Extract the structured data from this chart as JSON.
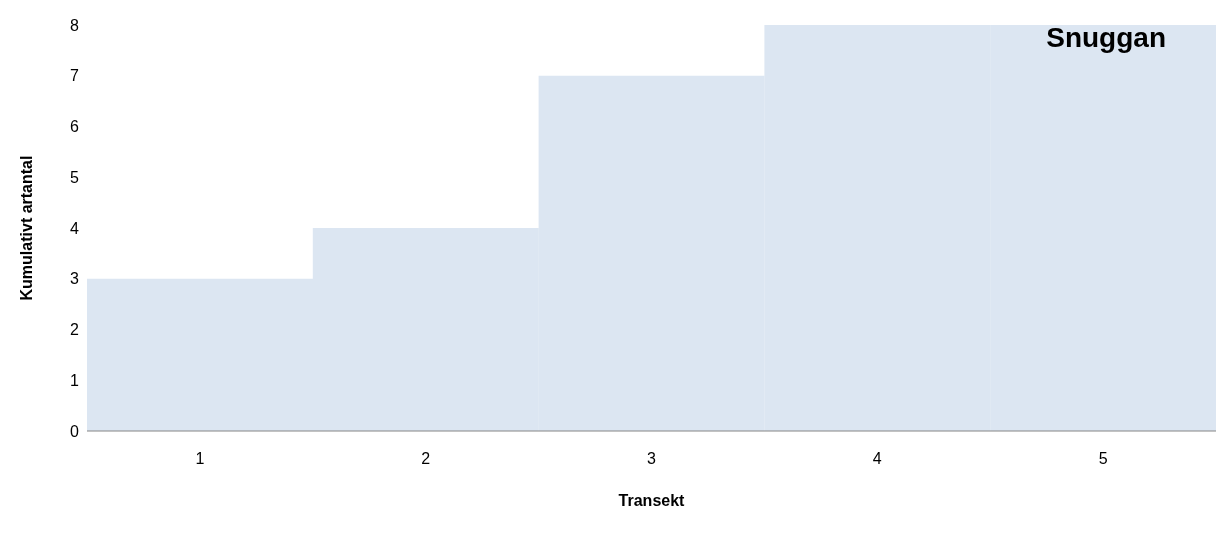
{
  "chart_data": {
    "type": "bar",
    "title": "Snuggan",
    "xlabel": "Transekt",
    "ylabel": "Kumulativt artantal",
    "categories": [
      "1",
      "2",
      "3",
      "4",
      "5"
    ],
    "values": [
      3,
      4,
      7,
      8,
      8
    ],
    "color": "#dce6f2",
    "ylim": [
      0,
      8
    ],
    "yticks": [
      0,
      1,
      2,
      3,
      4,
      5,
      6,
      7,
      8
    ],
    "grid": false,
    "legend": false
  }
}
